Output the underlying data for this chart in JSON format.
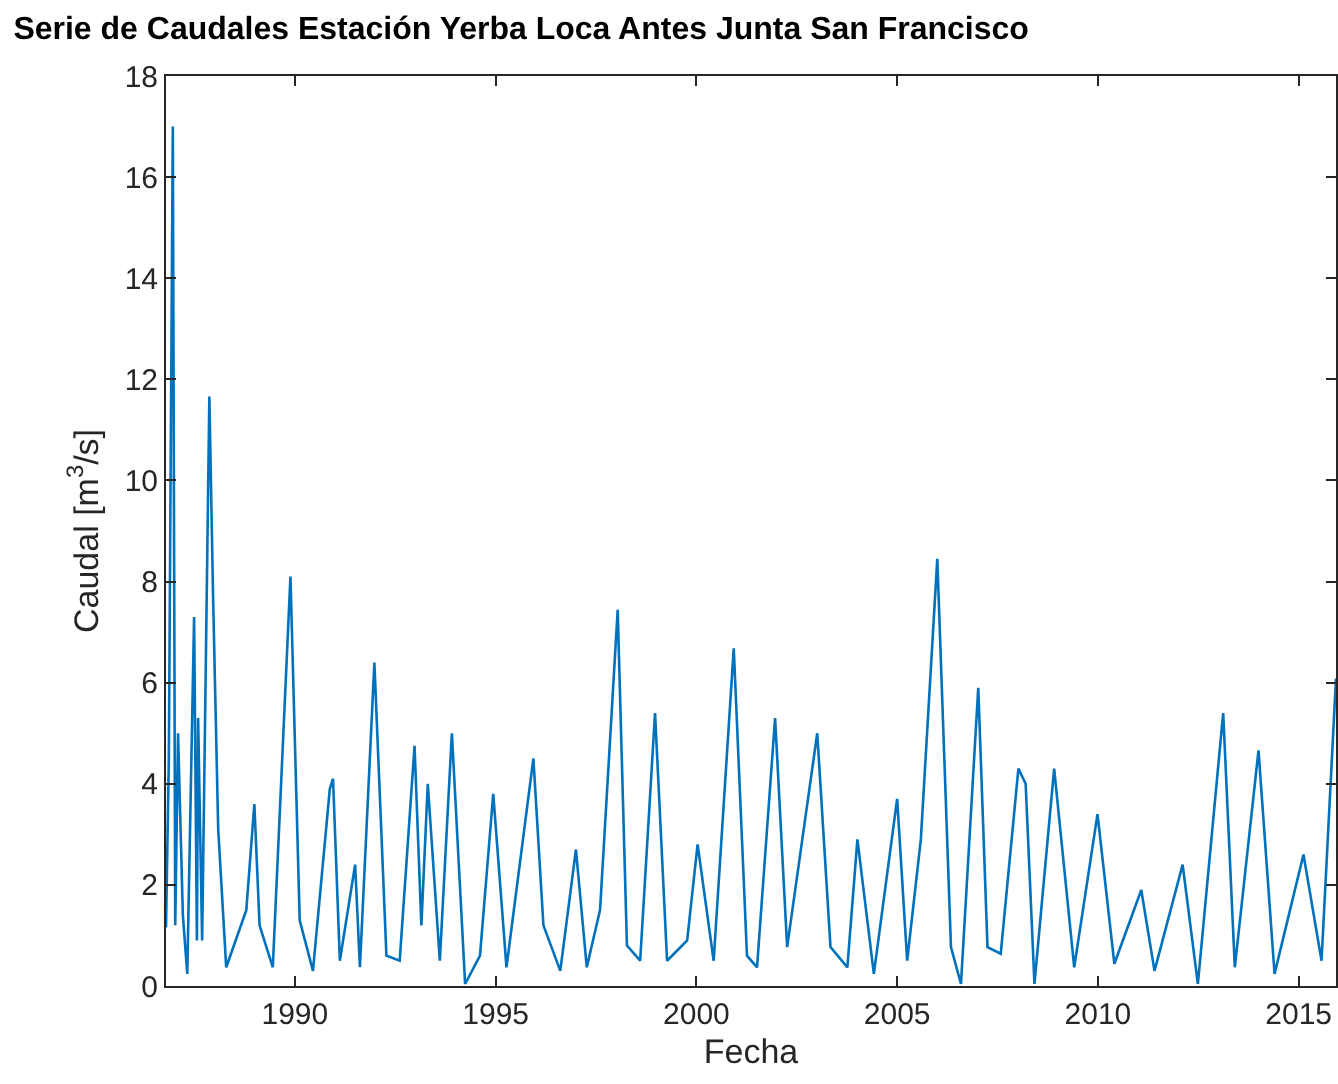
{
  "chart_data": {
    "type": "line",
    "title": "Serie de Caudales Estación Yerba Loca Antes Junta San Francisco",
    "xlabel": "Fecha",
    "ylabel": "Caudal [m$^{3}$/s]",
    "x": [
      1986.79,
      1986.86,
      1986.96,
      1987.02,
      1987.09,
      1987.21,
      1987.32,
      1987.49,
      1987.56,
      1987.59,
      1987.69,
      1987.87,
      1987.96,
      1988.09,
      1988.29,
      1988.79,
      1988.99,
      1989.12,
      1989.45,
      1989.89,
      1990.12,
      1990.45,
      1990.87,
      1990.95,
      1991.12,
      1991.5,
      1991.62,
      1991.98,
      1992.28,
      1992.61,
      1992.98,
      1993.15,
      1993.31,
      1993.61,
      1993.91,
      1994.24,
      1994.61,
      1994.94,
      1995.27,
      1995.94,
      1996.19,
      1996.61,
      1997.0,
      1997.27,
      1997.6,
      1998.04,
      1998.27,
      1998.6,
      1998.97,
      1999.27,
      1999.77,
      2000.03,
      2000.43,
      2000.93,
      2001.26,
      2001.51,
      2001.96,
      2002.26,
      2003.01,
      2003.34,
      2003.76,
      2004.01,
      2004.42,
      2005.0,
      2005.25,
      2005.59,
      2006.0,
      2006.34,
      2006.59,
      2007.02,
      2007.25,
      2007.58,
      2008.02,
      2008.2,
      2008.42,
      2008.91,
      2009.41,
      2009.99,
      2010.41,
      2011.08,
      2011.41,
      2012.11,
      2012.49,
      2013.12,
      2013.41,
      2014.0,
      2014.4,
      2015.12,
      2015.57,
      2015.93
    ],
    "series": [
      {
        "color": "#0072bd",
        "values": [
          1.16,
          4.47,
          17.0,
          1.2,
          5.0,
          1.4,
          0.24,
          7.3,
          0.9,
          5.3,
          0.9,
          11.66,
          7.8,
          3.1,
          0.37,
          1.5,
          3.6,
          1.2,
          0.37,
          8.1,
          1.3,
          0.3,
          3.9,
          4.1,
          0.5,
          2.4,
          0.37,
          6.4,
          0.6,
          0.5,
          4.75,
          1.2,
          4.0,
          0.5,
          5.0,
          0.04,
          0.6,
          3.8,
          0.37,
          4.5,
          1.2,
          0.3,
          2.7,
          0.37,
          1.5,
          7.44,
          0.8,
          0.5,
          5.4,
          0.5,
          0.9,
          2.8,
          0.5,
          6.68,
          0.6,
          0.37,
          5.3,
          0.77,
          5.0,
          0.77,
          0.37,
          2.9,
          0.24,
          3.7,
          0.5,
          2.9,
          8.45,
          0.77,
          0.04,
          5.9,
          0.77,
          0.64,
          4.3,
          4.0,
          0.04,
          4.3,
          0.37,
          3.4,
          0.44,
          1.9,
          0.3,
          2.4,
          0.04,
          5.4,
          0.37,
          4.66,
          0.24,
          2.6,
          0.5,
          6.08
        ]
      }
    ],
    "xlim": [
      1986.79,
      2015.93
    ],
    "xticks": [
      1990,
      1995,
      2000,
      2005,
      2010,
      2015
    ],
    "ylim": [
      0,
      18
    ],
    "yticks": [
      0,
      2,
      4,
      6,
      8,
      10,
      12,
      14,
      16,
      18
    ],
    "legend": false,
    "marker": "none",
    "line_style": "solid"
  }
}
